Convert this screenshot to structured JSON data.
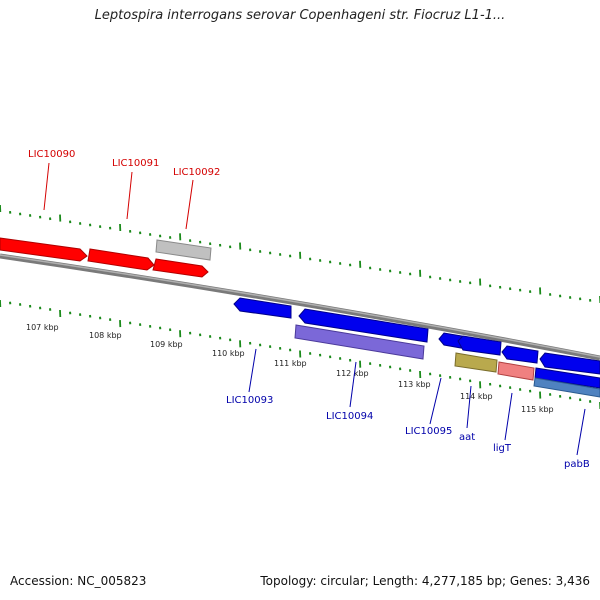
{
  "title": "Leptospira interrogans serovar Copenhageni str. Fiocruz L1-1...",
  "footer": {
    "accession": "Accession: NC_005823",
    "topology": "Topology: circular; Length: 4,277,185 bp; Genes: 3,436"
  },
  "colors": {
    "backbone": "#808080",
    "tick": "#1a8a1a",
    "forward_label": "#d40000",
    "reverse_label": "#0000aa",
    "red_gene": "#ff0000",
    "gray_gene": "#bfbfbf",
    "blue_gene": "#0000ee",
    "purple_gene": "#7b68d8",
    "khaki_gene": "#b9a94d",
    "pink_gene": "#f08080",
    "steel_gene": "#4f82c0"
  },
  "scale": {
    "ticks": [
      {
        "label": "107 kbp"
      },
      {
        "label": "108 kbp"
      },
      {
        "label": "109 kbp"
      },
      {
        "label": "110 kbp"
      },
      {
        "label": "111 kbp"
      },
      {
        "label": "112 kbp"
      },
      {
        "label": "113 kbp"
      },
      {
        "label": "114 kbp"
      },
      {
        "label": "115 kbp"
      }
    ]
  },
  "genes": {
    "forward": [
      {
        "label": "LIC10090",
        "color": "red"
      },
      {
        "label": "LIC10091",
        "color": "red"
      },
      {
        "label": "LIC10092",
        "color": "gray"
      }
    ],
    "reverse": [
      {
        "label": "LIC10093",
        "color": "blue"
      },
      {
        "label": "LIC10094",
        "color": "blue"
      },
      {
        "label": "LIC10095",
        "color": "blue"
      },
      {
        "label": "aat",
        "color": "khaki"
      },
      {
        "label": "ligT",
        "color": "pink"
      },
      {
        "label": "pabB",
        "color": "steel"
      }
    ]
  }
}
